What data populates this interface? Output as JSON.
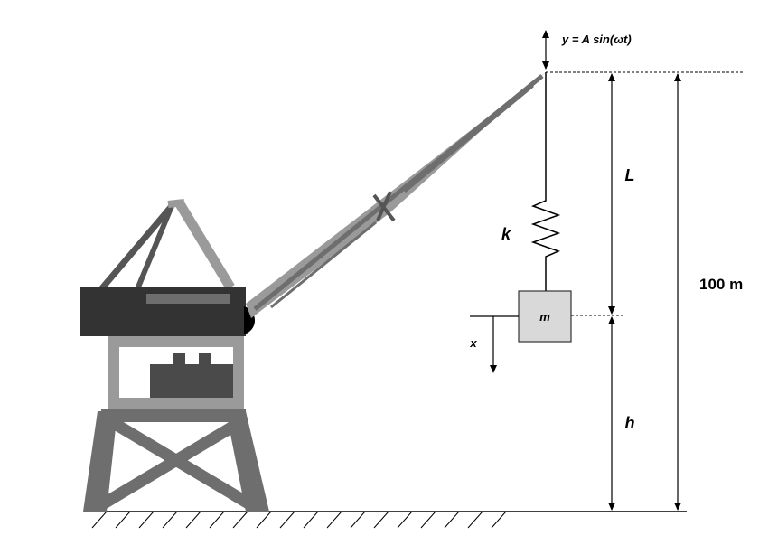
{
  "labels": {
    "excitation": "y = A sin(ωt)",
    "cable_length": "L",
    "spring_constant": "k",
    "mass": "m",
    "displacement": "x",
    "height_above_ground": "h",
    "total_height": "100 m"
  },
  "colors": {
    "crane_dark": "#333333",
    "crane_mid": "#6e6e6e",
    "crane_light": "#9a9a9a",
    "mass_fill": "#d9d9d9",
    "line": "#000000"
  }
}
